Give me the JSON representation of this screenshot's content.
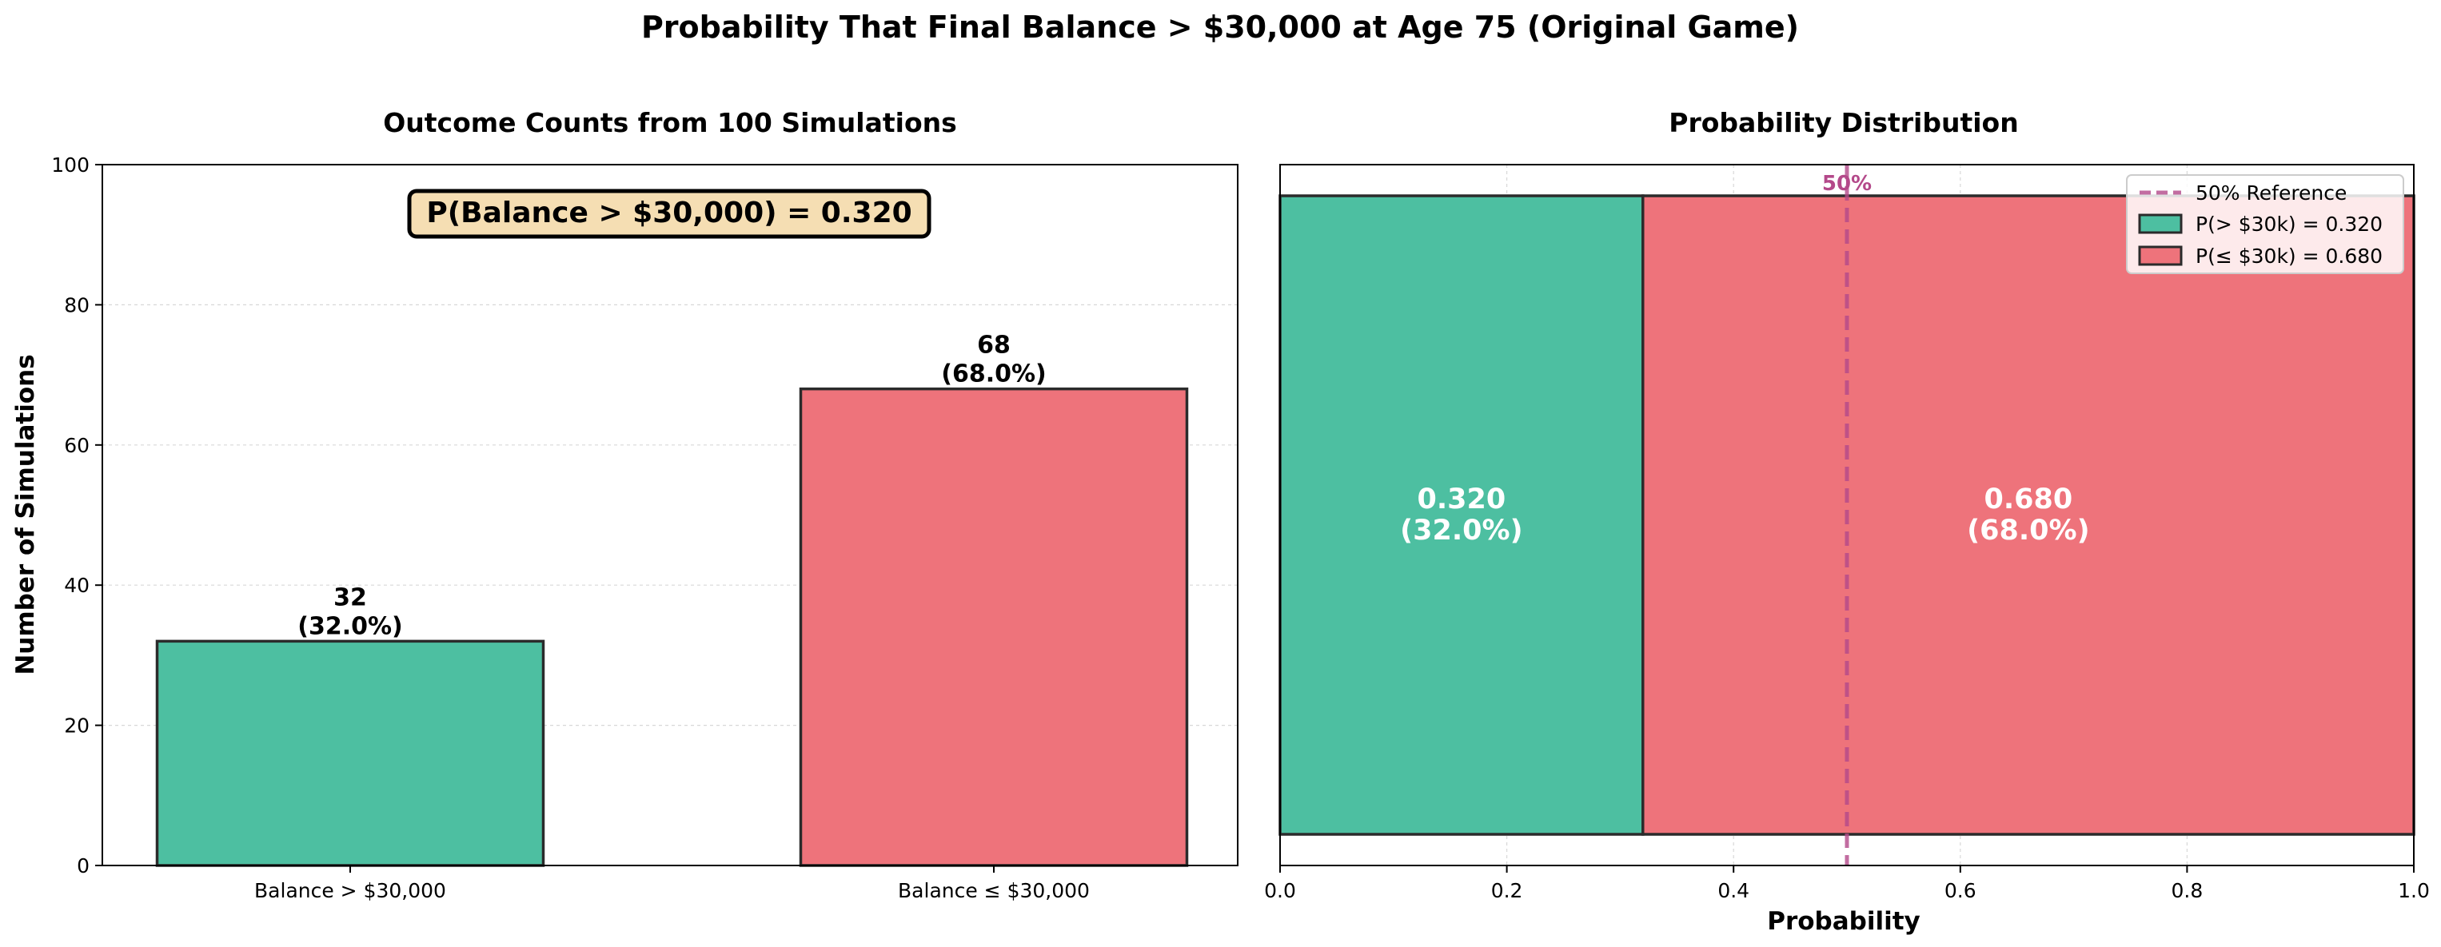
{
  "figure": {
    "suptitle": "Probability That Final Balance > $30,000 at Age 75 (Original Game)"
  },
  "colors": {
    "above": "#4DBFA1",
    "below": "#EE737B",
    "edge": "#2b2b2b",
    "reference": "#B4498A",
    "annotation_box": "#F5DEB3"
  },
  "chart_data": [
    {
      "type": "bar",
      "title": "Outcome Counts from 100 Simulations",
      "xlabel": "",
      "ylabel": "Number of Simulations",
      "categories": [
        "Balance > $30,000",
        "Balance ≤ $30,000"
      ],
      "values": [
        32,
        68
      ],
      "value_labels": [
        "32\n(32.0%)",
        "68\n(68.0%)"
      ],
      "ylim": [
        0,
        100
      ],
      "yticks": [
        0,
        20,
        40,
        60,
        80,
        100
      ],
      "grid": true,
      "annotation": "P(Balance > $30,000) = 0.320"
    },
    {
      "type": "bar",
      "orientation": "horizontal-stacked",
      "title": "Probability Distribution",
      "xlabel": "Probability",
      "ylabel": "",
      "segments": [
        {
          "name": "P(> $30k) = 0.320",
          "start": 0.0,
          "value": 0.32,
          "label": "0.320\n(32.0%)"
        },
        {
          "name": "P(≤ $30k) = 0.680",
          "start": 0.32,
          "value": 0.68,
          "label": "0.680\n(68.0%)"
        }
      ],
      "reference_line": {
        "x": 0.5,
        "name": "50% Reference",
        "label": "50%"
      },
      "xlim": [
        0,
        1
      ],
      "xticks": [
        "0.0",
        "0.2",
        "0.4",
        "0.6",
        "0.8",
        "1.0"
      ],
      "grid": true,
      "legend": "top-right"
    }
  ]
}
